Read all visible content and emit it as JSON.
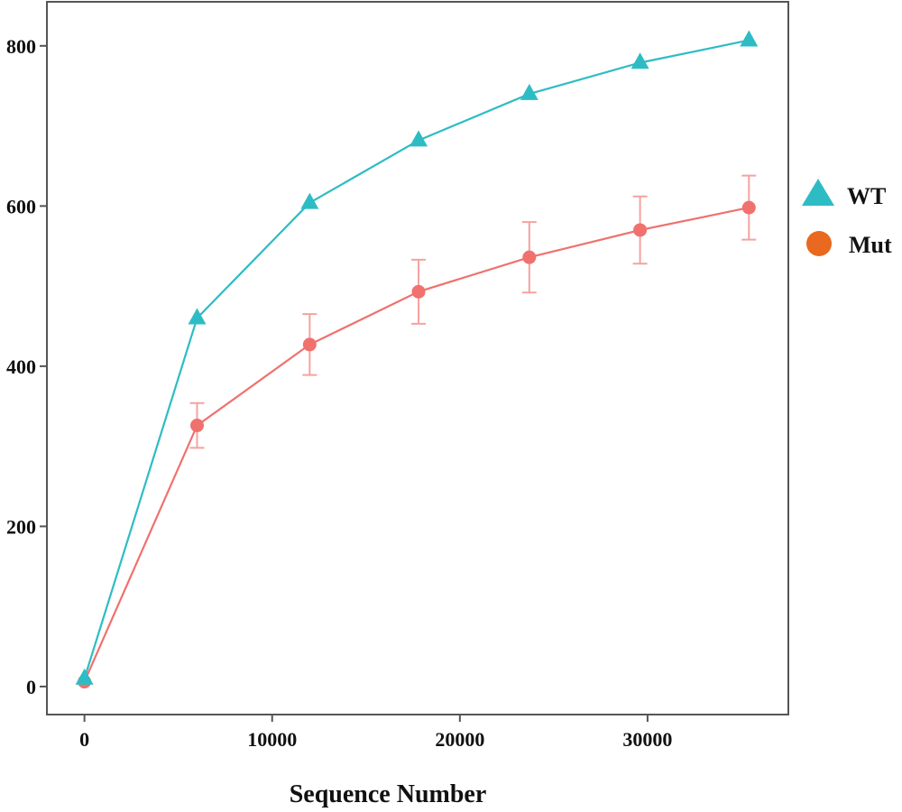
{
  "chart_data": {
    "type": "line",
    "title": "",
    "xlabel": "Sequence Number",
    "ylabel": "",
    "xlim": [
      -2000,
      37500
    ],
    "ylim": [
      -35,
      855
    ],
    "x_ticks": [
      0,
      10000,
      20000,
      30000
    ],
    "x_tick_labels": [
      "0",
      "10000",
      "20000",
      "30000"
    ],
    "y_ticks": [
      0,
      200,
      400,
      600,
      800
    ],
    "y_tick_labels": [
      "0",
      "200",
      "400",
      "600",
      "800"
    ],
    "grid": false,
    "legend_position": "right",
    "series": [
      {
        "name": "WT",
        "marker": "triangle",
        "color": "#2ebcc4",
        "x": [
          0,
          6000,
          12000,
          17800,
          23700,
          29600,
          35400
        ],
        "y": [
          10,
          460,
          604,
          682,
          740,
          779,
          807
        ],
        "err": [
          0,
          0,
          0,
          0,
          0,
          0,
          0
        ]
      },
      {
        "name": "Mut",
        "marker": "circle",
        "color": "#f0716e",
        "x": [
          0,
          6000,
          12000,
          17800,
          23700,
          29600,
          35400
        ],
        "y": [
          6,
          326,
          427,
          493,
          536,
          570,
          598
        ],
        "err": [
          0,
          28,
          38,
          40,
          44,
          42,
          40
        ]
      }
    ],
    "legend_markers": {
      "WT": "#2ebcc4",
      "Mut": "#e8691f"
    }
  }
}
